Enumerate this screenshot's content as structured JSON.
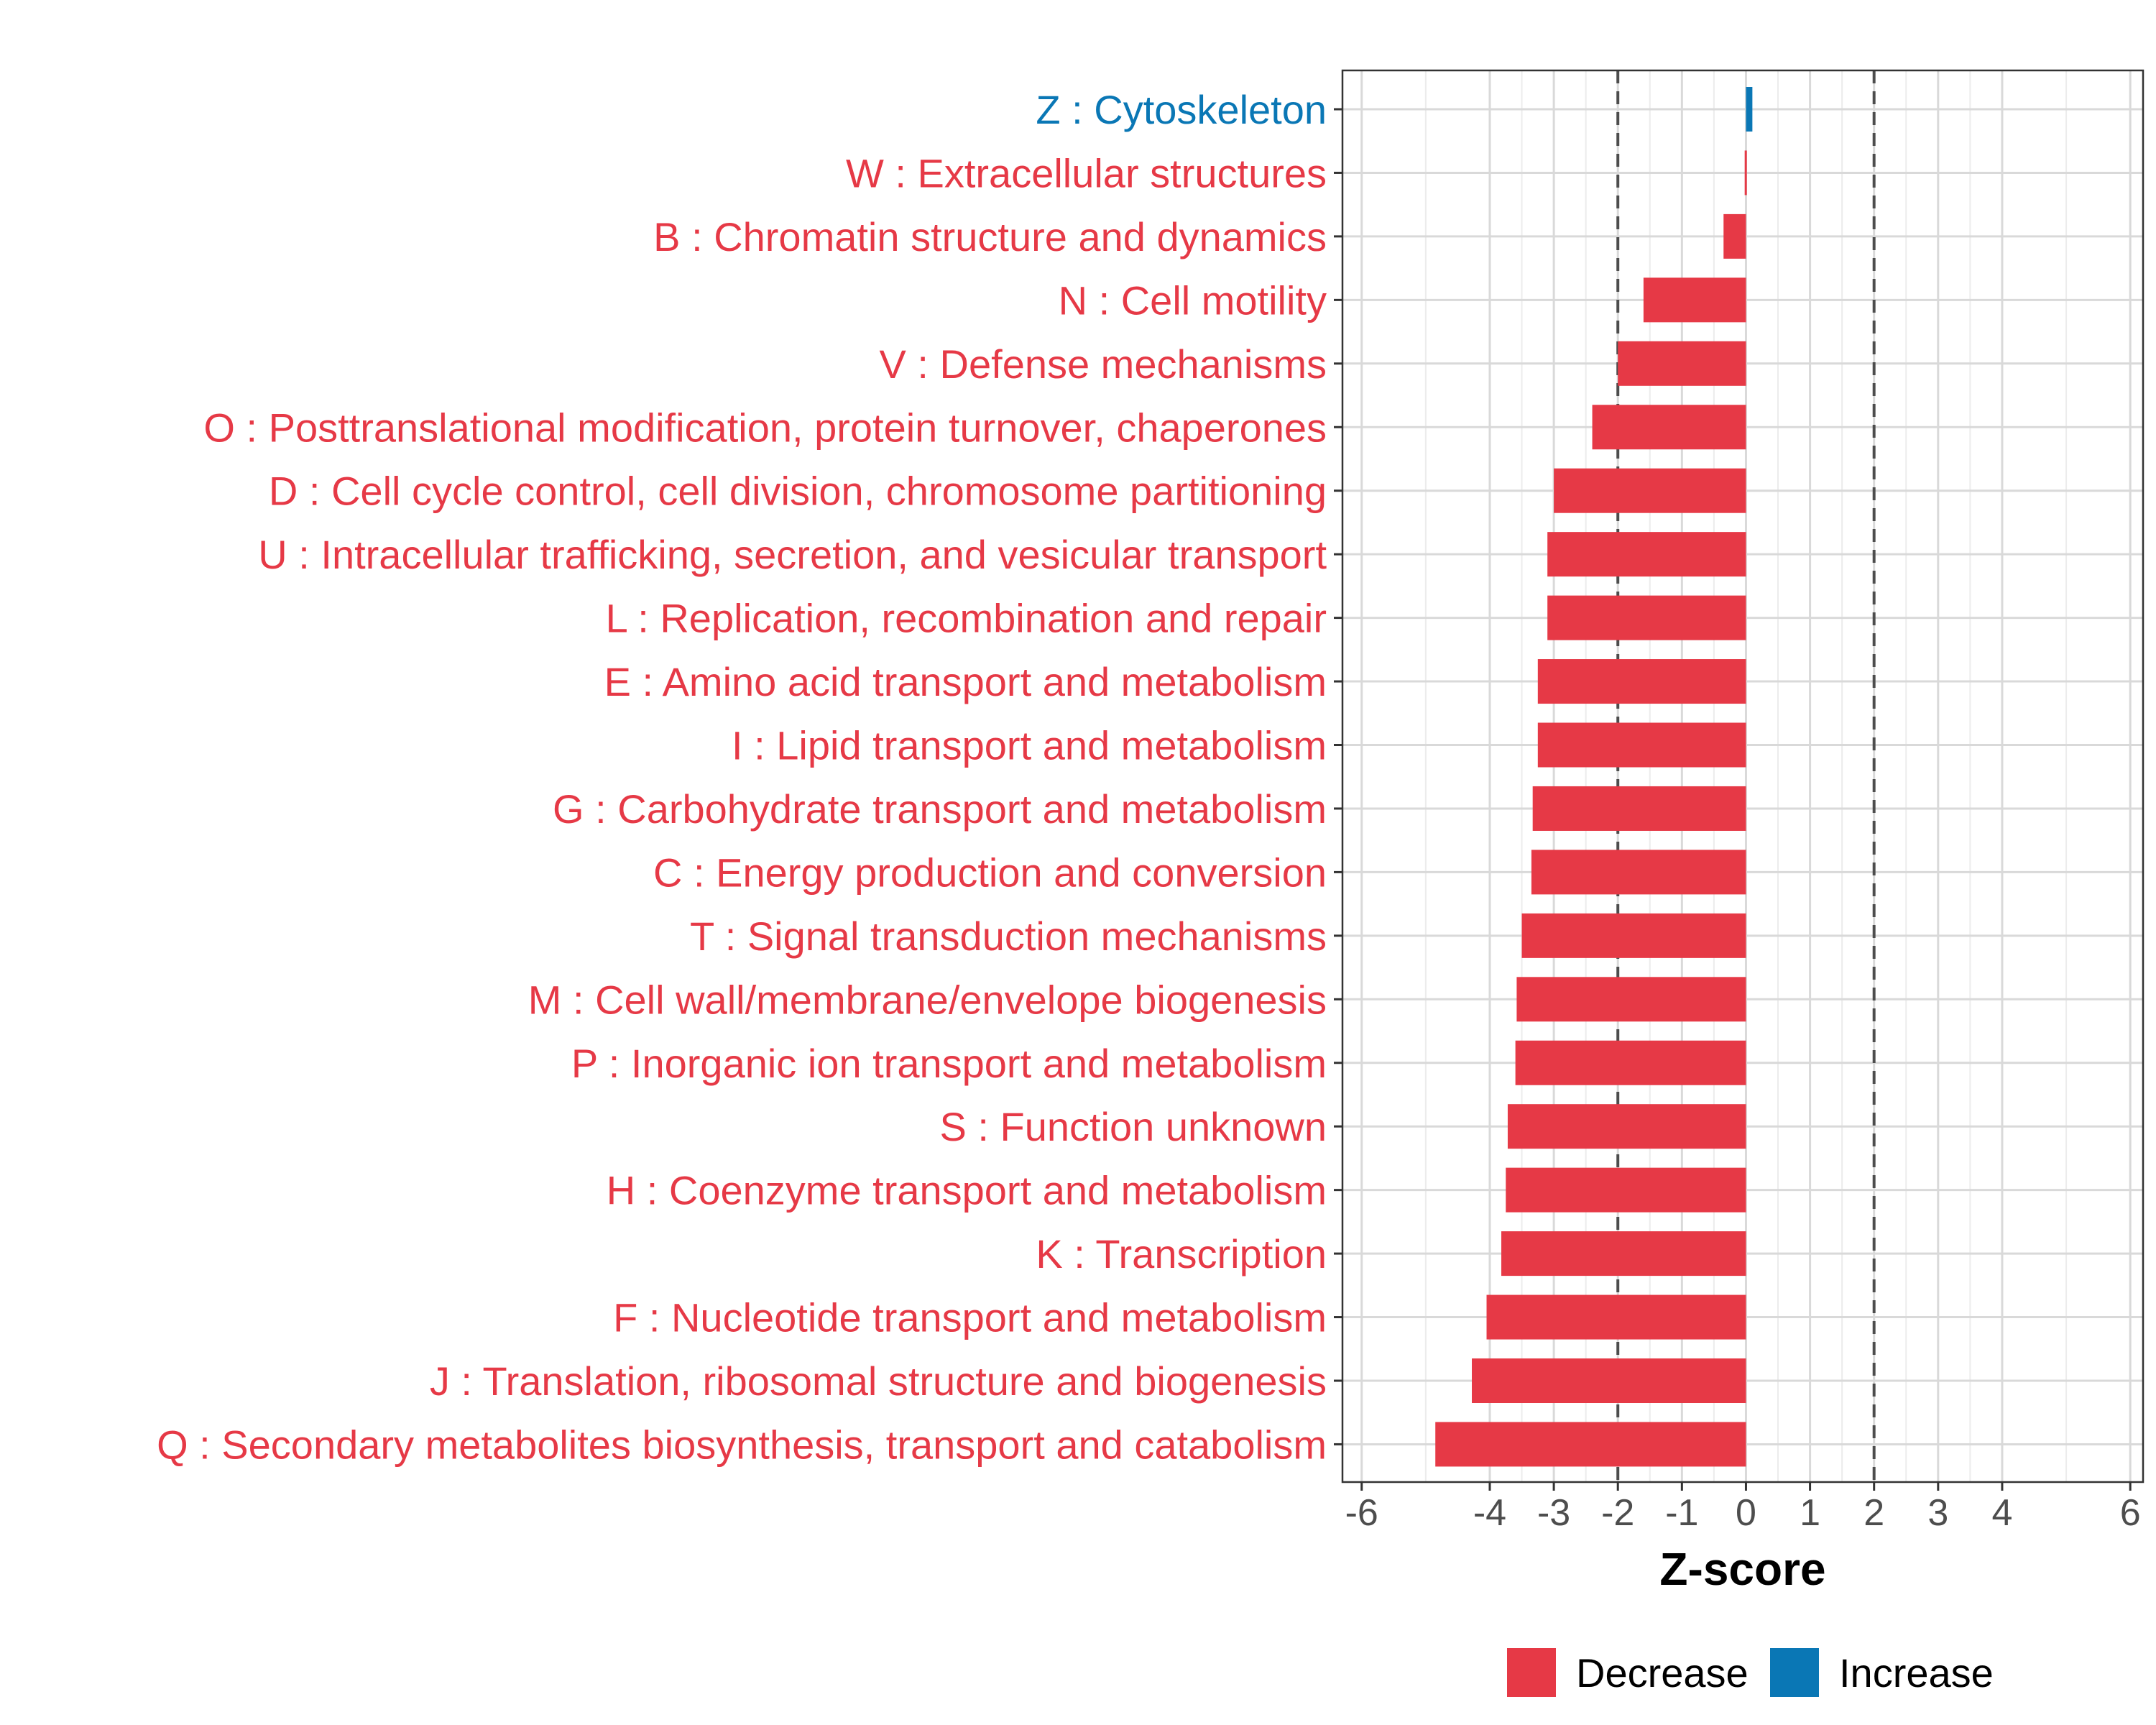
{
  "chart_data": {
    "type": "bar",
    "orientation": "horizontal",
    "xlabel": "Z-score",
    "xlim": [
      -6.3,
      6.2
    ],
    "x_ticks": [
      -6,
      -4,
      -3,
      -2,
      -1,
      0,
      1,
      2,
      3,
      4,
      6
    ],
    "grid": true,
    "reference_lines": [
      -2,
      2
    ],
    "categories": [
      "Z : Cytoskeleton",
      "W : Extracellular structures",
      "B : Chromatin structure and dynamics",
      "N : Cell motility",
      "V : Defense mechanisms",
      "O : Posttranslational modification, protein turnover, chaperones",
      "D : Cell cycle control, cell division, chromosome partitioning",
      "U : Intracellular trafficking, secretion, and vesicular transport",
      "L : Replication, recombination and repair",
      "E : Amino acid transport and metabolism",
      "I : Lipid transport and metabolism",
      "G : Carbohydrate transport and metabolism",
      "C : Energy production and conversion",
      "T : Signal transduction mechanisms",
      "M : Cell wall/membrane/envelope biogenesis",
      "P : Inorganic ion transport and metabolism",
      "S : Function unknown",
      "H : Coenzyme transport and metabolism",
      "K : Transcription",
      "F : Nucleotide transport and metabolism",
      "J : Translation, ribosomal structure and biogenesis",
      "Q : Secondary metabolites biosynthesis, transport and catabolism"
    ],
    "values": [
      0.1,
      -0.02,
      -0.35,
      -1.6,
      -2.0,
      -2.4,
      -3.0,
      -3.1,
      -3.1,
      -3.25,
      -3.25,
      -3.33,
      -3.35,
      -3.5,
      -3.58,
      -3.6,
      -3.72,
      -3.75,
      -3.82,
      -4.05,
      -4.28,
      -4.85
    ],
    "direction": [
      "Increase",
      "Decrease",
      "Decrease",
      "Decrease",
      "Decrease",
      "Decrease",
      "Decrease",
      "Decrease",
      "Decrease",
      "Decrease",
      "Decrease",
      "Decrease",
      "Decrease",
      "Decrease",
      "Decrease",
      "Decrease",
      "Decrease",
      "Decrease",
      "Decrease",
      "Decrease",
      "Decrease",
      "Decrease"
    ],
    "legend": [
      {
        "label": "Decrease",
        "color": "#e63946"
      },
      {
        "label": "Increase",
        "color": "#0a77b5"
      }
    ],
    "legend_position": "bottom"
  }
}
